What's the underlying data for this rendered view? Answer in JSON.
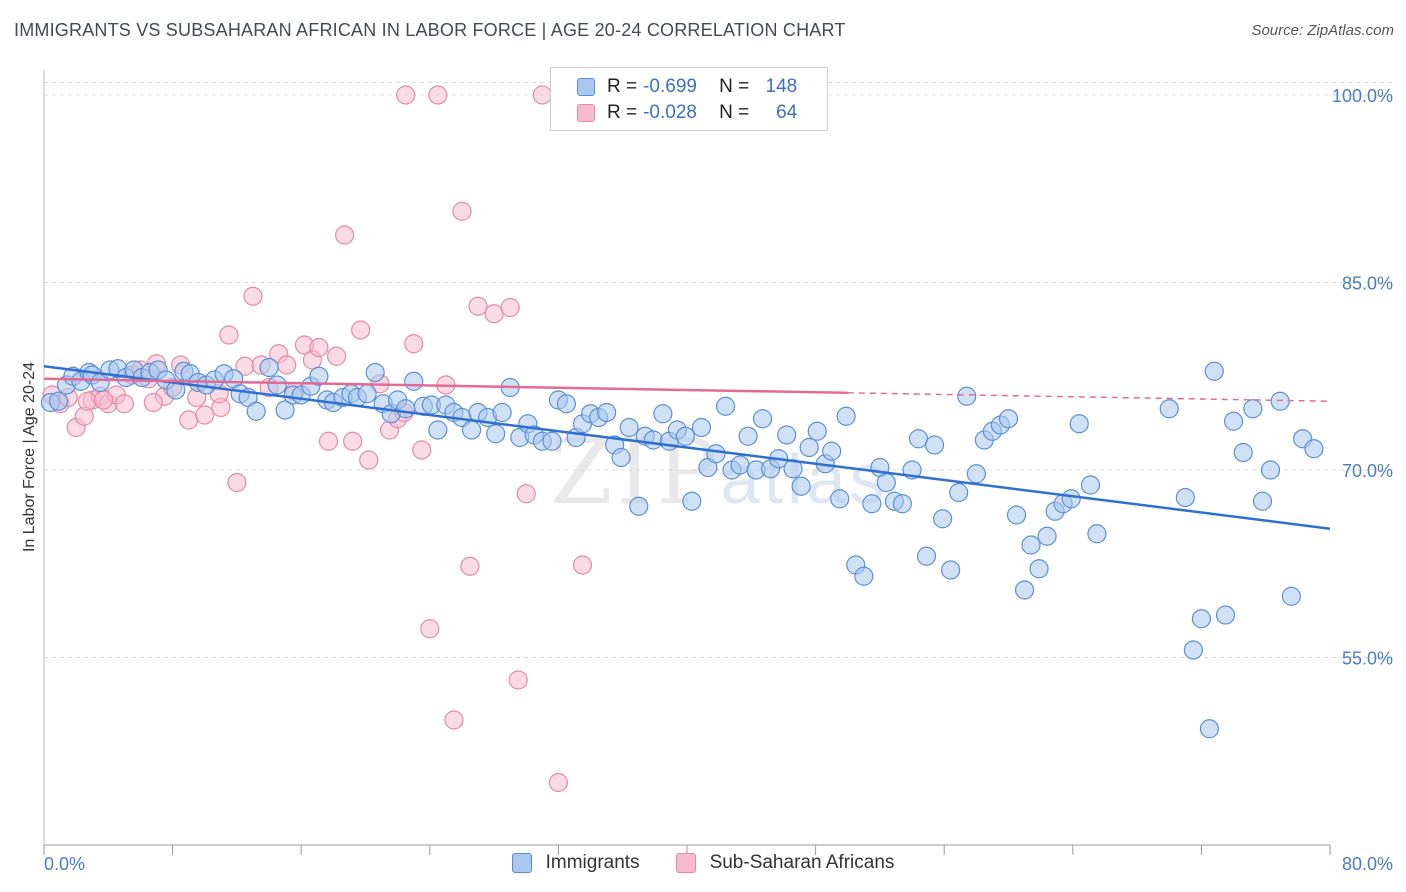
{
  "header": {
    "title": "IMMIGRANTS VS SUBSAHARAN AFRICAN IN LABOR FORCE | AGE 20-24 CORRELATION CHART",
    "source": "Source: ZipAtlas.com"
  },
  "watermark": {
    "zip": "ZIP",
    "atlas": "atlas"
  },
  "legend": {
    "rows": [
      {
        "r_label": "R =",
        "r_value": "-0.699",
        "n_label": "N =",
        "n_value": "148"
      },
      {
        "r_label": "R =",
        "r_value": "-0.028",
        "n_label": "N =",
        "n_value": "64"
      }
    ]
  },
  "bottom_legend": {
    "immigrants": "Immigrants",
    "subsaharan": "Sub-Saharan Africans"
  },
  "colors": {
    "blue_fill": "#a9c8ef",
    "blue_stroke": "#5a8fd6",
    "blue_line": "#2f6fd0",
    "pink_fill": "#f6bccd",
    "pink_stroke": "#e38aa6",
    "pink_line": "#e46a93",
    "grid": "#d9d9d9",
    "tick_text": "#4a7cc4"
  },
  "chart_data": {
    "type": "scatter",
    "title": "IMMIGRANTS VS SUBSAHARAN AFRICAN IN LABOR FORCE | AGE 20-24 CORRELATION CHART",
    "xlabel": "",
    "ylabel": "In Labor Force | Age 20-24",
    "xlim": [
      0,
      80
    ],
    "ylim": [
      40,
      102
    ],
    "x_tick_labels": [
      "0.0%",
      "80.0%"
    ],
    "y_ticks": [
      55,
      70,
      85,
      100
    ],
    "y_tick_labels": [
      "55.0%",
      "70.0%",
      "85.0%",
      "100.0%"
    ],
    "series": [
      {
        "name": "Immigrants",
        "r": -0.699,
        "n": 148,
        "trend": {
          "x": [
            0,
            80
          ],
          "y": [
            78.3,
            65.3
          ]
        },
        "points": [
          [
            0.4,
            75.4
          ],
          [
            0.9,
            75.5
          ],
          [
            1.4,
            76.8
          ],
          [
            1.8,
            77.5
          ],
          [
            2.3,
            77.1
          ],
          [
            2.8,
            77.8
          ],
          [
            3.0,
            77.6
          ],
          [
            3.5,
            77.0
          ],
          [
            4.1,
            78.0
          ],
          [
            4.6,
            78.1
          ],
          [
            5.1,
            77.4
          ],
          [
            5.6,
            78.0
          ],
          [
            6.1,
            77.4
          ],
          [
            6.6,
            77.8
          ],
          [
            7.1,
            78.0
          ],
          [
            7.6,
            77.2
          ],
          [
            8.2,
            76.4
          ],
          [
            8.7,
            77.9
          ],
          [
            9.1,
            77.7
          ],
          [
            9.6,
            77.0
          ],
          [
            10.1,
            76.8
          ],
          [
            10.6,
            77.2
          ],
          [
            11.2,
            77.7
          ],
          [
            11.8,
            77.3
          ],
          [
            12.2,
            76.1
          ],
          [
            12.7,
            75.8
          ],
          [
            13.2,
            74.7
          ],
          [
            14.0,
            78.2
          ],
          [
            14.5,
            76.8
          ],
          [
            15.0,
            74.8
          ],
          [
            15.5,
            76.0
          ],
          [
            16.0,
            76.0
          ],
          [
            16.6,
            76.7
          ],
          [
            17.1,
            77.5
          ],
          [
            17.6,
            75.6
          ],
          [
            18.0,
            75.4
          ],
          [
            18.6,
            75.8
          ],
          [
            19.1,
            76.1
          ],
          [
            19.5,
            75.8
          ],
          [
            20.1,
            76.1
          ],
          [
            20.6,
            77.8
          ],
          [
            21.1,
            75.3
          ],
          [
            21.6,
            74.5
          ],
          [
            22.0,
            75.6
          ],
          [
            22.5,
            74.9
          ],
          [
            23.0,
            77.1
          ],
          [
            23.6,
            75.1
          ],
          [
            24.1,
            75.2
          ],
          [
            24.5,
            73.2
          ],
          [
            25.0,
            75.2
          ],
          [
            25.5,
            74.6
          ],
          [
            26.0,
            74.2
          ],
          [
            26.6,
            73.2
          ],
          [
            27.0,
            74.6
          ],
          [
            27.6,
            74.2
          ],
          [
            28.1,
            72.9
          ],
          [
            28.5,
            74.6
          ],
          [
            29.0,
            76.6
          ],
          [
            29.6,
            72.6
          ],
          [
            30.1,
            73.7
          ],
          [
            30.5,
            72.8
          ],
          [
            31.0,
            72.3
          ],
          [
            31.6,
            72.3
          ],
          [
            32.0,
            75.6
          ],
          [
            32.5,
            75.3
          ],
          [
            33.1,
            72.6
          ],
          [
            33.5,
            73.7
          ],
          [
            34.0,
            74.5
          ],
          [
            34.5,
            74.2
          ],
          [
            35.0,
            74.6
          ],
          [
            35.5,
            72.0
          ],
          [
            35.9,
            71.0
          ],
          [
            36.4,
            73.4
          ],
          [
            37.0,
            67.1
          ],
          [
            37.4,
            72.7
          ],
          [
            37.9,
            72.4
          ],
          [
            38.5,
            74.5
          ],
          [
            38.9,
            72.3
          ],
          [
            39.4,
            73.2
          ],
          [
            39.9,
            72.7
          ],
          [
            40.3,
            67.5
          ],
          [
            40.9,
            73.4
          ],
          [
            41.3,
            70.2
          ],
          [
            41.8,
            71.3
          ],
          [
            42.4,
            75.1
          ],
          [
            42.8,
            70.0
          ],
          [
            43.3,
            70.4
          ],
          [
            43.8,
            72.7
          ],
          [
            44.3,
            70.0
          ],
          [
            44.7,
            74.1
          ],
          [
            45.2,
            70.1
          ],
          [
            45.7,
            70.9
          ],
          [
            46.2,
            72.8
          ],
          [
            46.6,
            70.1
          ],
          [
            47.1,
            68.7
          ],
          [
            47.6,
            71.8
          ],
          [
            48.1,
            73.1
          ],
          [
            48.6,
            70.5
          ],
          [
            49.0,
            71.5
          ],
          [
            49.5,
            67.7
          ],
          [
            49.9,
            74.3
          ],
          [
            50.5,
            62.4
          ],
          [
            51.0,
            61.5
          ],
          [
            51.5,
            67.3
          ],
          [
            52.0,
            70.2
          ],
          [
            52.4,
            69.0
          ],
          [
            52.9,
            67.5
          ],
          [
            53.4,
            67.3
          ],
          [
            54.0,
            70.0
          ],
          [
            54.4,
            72.5
          ],
          [
            54.9,
            63.1
          ],
          [
            55.4,
            72.0
          ],
          [
            55.9,
            66.1
          ],
          [
            56.4,
            62.0
          ],
          [
            56.9,
            68.2
          ],
          [
            57.4,
            75.9
          ],
          [
            58.0,
            69.7
          ],
          [
            58.5,
            72.4
          ],
          [
            59.0,
            73.1
          ],
          [
            59.5,
            73.6
          ],
          [
            60.0,
            74.1
          ],
          [
            60.5,
            66.4
          ],
          [
            61.0,
            60.4
          ],
          [
            61.4,
            64.0
          ],
          [
            61.9,
            62.1
          ],
          [
            62.4,
            64.7
          ],
          [
            62.9,
            66.7
          ],
          [
            63.4,
            67.3
          ],
          [
            63.9,
            67.7
          ],
          [
            64.4,
            73.7
          ],
          [
            65.1,
            68.8
          ],
          [
            65.5,
            64.9
          ],
          [
            70.0,
            74.9
          ],
          [
            71.0,
            67.8
          ],
          [
            71.5,
            55.6
          ],
          [
            72.0,
            58.1
          ],
          [
            72.5,
            49.3
          ],
          [
            72.8,
            77.9
          ],
          [
            73.5,
            58.4
          ],
          [
            74.0,
            73.9
          ],
          [
            74.6,
            71.4
          ],
          [
            75.2,
            74.9
          ],
          [
            75.8,
            67.5
          ],
          [
            76.3,
            70.0
          ],
          [
            76.9,
            75.5
          ],
          [
            77.6,
            59.9
          ],
          [
            78.3,
            72.5
          ],
          [
            79.0,
            71.7
          ]
        ]
      },
      {
        "name": "Sub-Saharan Africans",
        "r": -0.028,
        "n": 64,
        "trend": {
          "x": [
            0,
            80
          ],
          "y": [
            77.3,
            75.5
          ]
        },
        "points": [
          [
            0.5,
            76.0
          ],
          [
            1.0,
            75.3
          ],
          [
            1.5,
            75.8
          ],
          [
            2.0,
            73.4
          ],
          [
            2.5,
            74.3
          ],
          [
            3.0,
            75.6
          ],
          [
            3.5,
            75.9
          ],
          [
            4.0,
            75.3
          ],
          [
            4.5,
            76.0
          ],
          [
            5.0,
            75.3
          ],
          [
            5.5,
            77.6
          ],
          [
            6.0,
            78.0
          ],
          [
            6.5,
            77.3
          ],
          [
            7.0,
            78.5
          ],
          [
            7.5,
            75.9
          ],
          [
            8.0,
            76.6
          ],
          [
            8.5,
            78.4
          ],
          [
            9.0,
            74.0
          ],
          [
            9.5,
            75.8
          ],
          [
            10.0,
            74.4
          ],
          [
            11.0,
            75.0
          ],
          [
            11.5,
            80.8
          ],
          [
            12.0,
            69.0
          ],
          [
            12.5,
            78.3
          ],
          [
            13.0,
            83.9
          ],
          [
            13.5,
            78.4
          ],
          [
            14.0,
            76.6
          ],
          [
            14.6,
            79.3
          ],
          [
            15.1,
            78.4
          ],
          [
            15.6,
            76.3
          ],
          [
            16.2,
            80.0
          ],
          [
            16.7,
            78.8
          ],
          [
            17.1,
            79.8
          ],
          [
            17.7,
            72.3
          ],
          [
            18.2,
            79.1
          ],
          [
            18.7,
            88.8
          ],
          [
            19.2,
            72.3
          ],
          [
            19.7,
            81.2
          ],
          [
            20.2,
            70.8
          ],
          [
            21.5,
            73.2
          ],
          [
            22.0,
            74.1
          ],
          [
            22.5,
            100.0
          ],
          [
            23.0,
            80.1
          ],
          [
            23.5,
            71.6
          ],
          [
            24.0,
            57.3
          ],
          [
            24.5,
            100.0
          ],
          [
            25.0,
            76.8
          ],
          [
            25.5,
            50.0
          ],
          [
            26.0,
            90.7
          ],
          [
            26.5,
            62.3
          ],
          [
            27.0,
            83.1
          ],
          [
            28.0,
            82.5
          ],
          [
            29.0,
            83.0
          ],
          [
            29.5,
            53.2
          ],
          [
            30.0,
            68.1
          ],
          [
            31.0,
            100.0
          ],
          [
            32.0,
            45.0
          ],
          [
            33.5,
            62.4
          ],
          [
            2.7,
            75.5
          ],
          [
            3.7,
            75.6
          ],
          [
            6.8,
            75.4
          ],
          [
            10.9,
            76.1
          ],
          [
            20.9,
            76.9
          ],
          [
            22.4,
            74.6
          ]
        ]
      }
    ]
  }
}
